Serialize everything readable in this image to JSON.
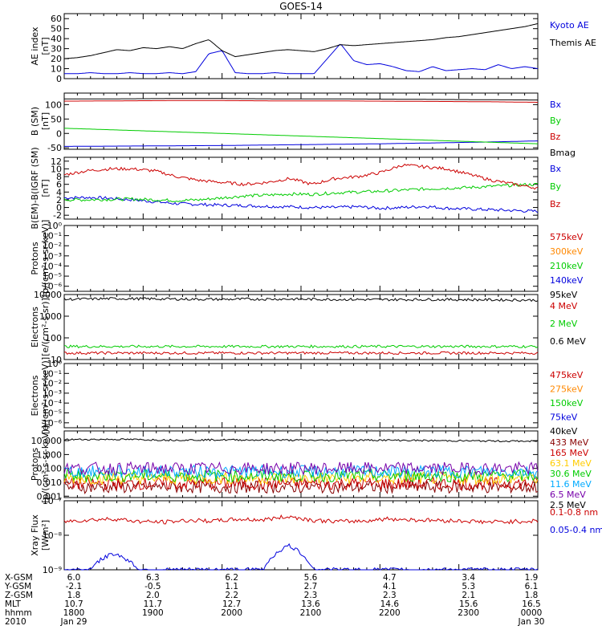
{
  "title": "GOES-14",
  "colors": {
    "black": "#000000",
    "blue": "#0000dd",
    "red": "#cc0000",
    "green": "#00cc00",
    "orange": "#ff8800",
    "darkred": "#880000",
    "gold": "#ffcc00",
    "cyan": "#00aaff",
    "purple": "#7700aa"
  },
  "chart_data": [
    {
      "type": "line",
      "panel": "ae_index",
      "ylabel": [
        "AE index",
        "[nT]"
      ],
      "ylim": [
        0,
        65
      ],
      "yticks": [
        "60",
        "50",
        "40",
        "30",
        "20",
        "10",
        "0"
      ],
      "ytick_values": [
        60,
        50,
        40,
        30,
        20,
        10,
        0
      ],
      "series": [
        {
          "name": "Kyoto AE",
          "color": "#0000dd",
          "values": [
            5,
            5,
            6,
            5,
            5,
            6,
            5,
            5,
            6,
            5,
            7,
            25,
            28,
            6,
            5,
            5,
            6,
            5,
            5,
            5,
            20,
            35,
            18,
            14,
            15,
            12,
            8,
            7,
            12,
            8,
            9,
            10,
            9,
            14,
            10,
            12,
            10
          ]
        },
        {
          "name": "Themis AE",
          "color": "#000000",
          "values": [
            20,
            21,
            23,
            26,
            29,
            28,
            31,
            30,
            32,
            30,
            35,
            39,
            28,
            22,
            24,
            26,
            28,
            29,
            28,
            27,
            30,
            34,
            33,
            34,
            35,
            36,
            37,
            38,
            39,
            41,
            42,
            44,
            46,
            48,
            50,
            52,
            55
          ]
        }
      ]
    },
    {
      "type": "line",
      "panel": "b_sm",
      "ylabel": [
        "B (SM)",
        "[nT]"
      ],
      "ylim": [
        -55,
        140
      ],
      "yticks": [
        "100",
        "50",
        "0",
        "-50"
      ],
      "ytick_values": [
        100,
        50,
        0,
        -50
      ],
      "series": [
        {
          "name": "Bx",
          "color": "#0000dd",
          "values": [
            -45,
            -44,
            -43,
            -42,
            -40,
            -38,
            -36,
            -33,
            -30,
            -26
          ]
        },
        {
          "name": "By",
          "color": "#00cc00",
          "values": [
            18,
            12,
            6,
            0,
            -6,
            -12,
            -18,
            -24,
            -30,
            -36
          ]
        },
        {
          "name": "Bz",
          "color": "#cc0000",
          "values": [
            112,
            113,
            114,
            114,
            113,
            113,
            112,
            111,
            110,
            108
          ]
        },
        {
          "name": "Bmag",
          "color": "#000000",
          "values": [
            120,
            120,
            121,
            121,
            120,
            120,
            119,
            118,
            117,
            116
          ]
        }
      ]
    },
    {
      "type": "line",
      "panel": "b_minus_igrf",
      "ylabel": [
        "B(EM)-B(IGRF (SM)",
        "[nT]"
      ],
      "ylim": [
        -3,
        13
      ],
      "yticks": [
        "12",
        "10",
        "8",
        "6",
        "4",
        "2",
        "0",
        "-2"
      ],
      "ytick_values": [
        12,
        10,
        8,
        6,
        4,
        2,
        0,
        -2
      ],
      "series": [
        {
          "name": "Bx",
          "color": "#0000dd",
          "values": [
            2.5,
            2.6,
            2.4,
            2.0,
            1.5,
            1.0,
            0.8,
            0.6,
            0.5,
            0.3,
            0.2,
            0.0,
            0.0,
            0.2,
            -0.2,
            0.0,
            0.3,
            -0.2,
            -0.4,
            -0.6,
            -0.8,
            -1.0
          ]
        },
        {
          "name": "By",
          "color": "#00cc00",
          "values": [
            2.0,
            2.0,
            2.1,
            2.2,
            2.0,
            1.8,
            2.0,
            2.5,
            3.0,
            3.2,
            3.5,
            3.4,
            3.8,
            4.0,
            4.2,
            4.5,
            4.8,
            5.0,
            5.2,
            5.5,
            5.8,
            6.0
          ]
        },
        {
          "name": "Bz",
          "color": "#cc0000",
          "values": [
            8.5,
            9.5,
            10.0,
            10.0,
            9.5,
            8.0,
            7.0,
            6.5,
            6.0,
            6.5,
            7.5,
            6.0,
            7.5,
            8.0,
            9.0,
            11.0,
            10.5,
            10.0,
            8.5,
            7.0,
            6.0,
            5.0
          ]
        }
      ]
    },
    {
      "type": "line",
      "panel": "protons_low",
      "scale": "log",
      "ylabel": [
        "Protons",
        "[p/(cm²-s-sr-keV)]"
      ],
      "ylim_exp": [
        -6.5,
        0
      ],
      "ytick_exps": [
        0,
        -1,
        -2,
        -3,
        -4,
        -5,
        -6
      ],
      "legend": [
        {
          "name": "575keV",
          "color": "#cc0000"
        },
        {
          "name": "300keV",
          "color": "#ff8800"
        },
        {
          "name": "210keV",
          "color": "#00cc00"
        },
        {
          "name": "140keV",
          "color": "#0000dd"
        },
        {
          "name": "95keV",
          "color": "#000000"
        }
      ]
    },
    {
      "type": "line",
      "panel": "electrons_high",
      "scale": "log",
      "ylabel": [
        "Electrons",
        "[e/(cm²-s-sr)]"
      ],
      "ylim_exp": [
        1,
        4
      ],
      "yticks": [
        "10000",
        "1000",
        "100",
        "10"
      ],
      "ytick_exps": [
        4,
        3,
        2,
        1
      ],
      "series": [
        {
          "name": "4 MeV",
          "color": "#cc0000",
          "values": [
            20,
            20,
            20,
            20,
            20,
            20,
            20,
            20,
            20,
            20
          ]
        },
        {
          "name": "2 MeV",
          "color": "#00cc00",
          "values": [
            40,
            40,
            40,
            40,
            40,
            40,
            40,
            40,
            40,
            40
          ]
        },
        {
          "name": "0.6 MeV",
          "color": "#000000",
          "values": [
            6000,
            6500,
            6200,
            6000,
            6200,
            6000,
            5800,
            5900,
            5700,
            5500
          ]
        }
      ]
    },
    {
      "type": "line",
      "panel": "electrons_low",
      "scale": "log",
      "ylabel": [
        "Electrons",
        "[e/(cm²-s-sr-keV)]"
      ],
      "ylim_exp": [
        -6.5,
        0
      ],
      "ytick_exps": [
        0,
        -1,
        -2,
        -3,
        -4,
        -5,
        -6
      ],
      "legend": [
        {
          "name": "475keV",
          "color": "#cc0000"
        },
        {
          "name": "275keV",
          "color": "#ff8800"
        },
        {
          "name": "150keV",
          "color": "#00cc00"
        },
        {
          "name": "75keV",
          "color": "#0000dd"
        },
        {
          "name": "40keV",
          "color": "#000000"
        }
      ]
    },
    {
      "type": "line",
      "panel": "protons_high",
      "scale": "log",
      "ylabel": [
        "Protons",
        "[p/(cm²-s-sr-keV)]"
      ],
      "ylim_exp": [
        -3.1,
        1.7
      ],
      "yticks": [
        "10.000",
        "1.000",
        "0.100",
        "0.010",
        "0.001"
      ],
      "ytick_exps": [
        1,
        0,
        -1,
        -2,
        -3
      ],
      "series": [
        {
          "name": "433 MeV",
          "color": "#880000",
          "values": [
            0.0045,
            0.0045,
            0.0045,
            0.0045,
            0.0045
          ]
        },
        {
          "name": "165 MeV",
          "color": "#cc0000",
          "values": [
            0.008,
            0.008,
            0.008,
            0.008,
            0.008
          ]
        },
        {
          "name": "63.1 MeV",
          "color": "#ffcc00",
          "values": [
            0.02,
            0.02,
            0.02,
            0.02,
            0.02
          ]
        },
        {
          "name": "30.6 MeV",
          "color": "#00cc00",
          "values": [
            0.03,
            0.03,
            0.03,
            0.03,
            0.03
          ]
        },
        {
          "name": "11.6 MeV",
          "color": "#00aaff",
          "values": [
            0.06,
            0.06,
            0.06,
            0.06,
            0.06
          ]
        },
        {
          "name": "6.5 MeV",
          "color": "#7700aa",
          "values": [
            0.1,
            0.1,
            0.1,
            0.1,
            0.1
          ]
        },
        {
          "name": "2.5 MeV",
          "color": "#000000",
          "values": [
            12,
            12.5,
            11,
            11.5,
            11,
            10.5,
            11,
            10,
            9.5,
            9
          ]
        }
      ]
    },
    {
      "type": "line",
      "panel": "xray",
      "scale": "log",
      "ylabel": [
        "Xray Flux",
        "[W/m²]"
      ],
      "ylim_exp": [
        -9,
        -7
      ],
      "ytick_exps": [
        -7,
        -8,
        -9
      ],
      "series": [
        {
          "name": "0.1-0.8 nm",
          "color": "#cc0000",
          "values": [
            2.5e-08,
            2.8e-08,
            3e-08,
            2.5e-08,
            2.4e-08,
            2.7e-08,
            2.6e-08,
            2.9e-08,
            2.8e-08,
            3.5e-08,
            2.7e-08,
            2.5e-08,
            2.6e-08,
            3e-08,
            2.8e-08,
            2.7e-08,
            2.6e-08,
            2.4e-08,
            2.5e-08,
            2.6e-08
          ]
        },
        {
          "name": "0.05-0.4 nm",
          "color": "#0000dd",
          "values": [
            1e-09,
            1e-09,
            3e-09,
            1e-09,
            1e-09,
            1e-09,
            1e-09,
            1e-09,
            1e-09,
            5e-09,
            1e-09,
            1e-09,
            1e-09,
            1e-09,
            1e-09,
            1e-09,
            1e-09,
            1e-09,
            1e-09,
            1e-09
          ]
        }
      ]
    }
  ],
  "x_axis": {
    "row_labels": [
      "X-GSM",
      "Y-GSM",
      "Z-GSM",
      "MLT",
      "hhmm",
      "2010"
    ],
    "columns": [
      [
        "6.0",
        "-2.1",
        "1.8",
        "10.7",
        "1800",
        "Jan 29"
      ],
      [
        "6.3",
        "-0.5",
        "2.0",
        "11.7",
        "1900",
        ""
      ],
      [
        "6.2",
        "1.1",
        "2.2",
        "12.7",
        "2000",
        ""
      ],
      [
        "5.6",
        "2.7",
        "2.3",
        "13.6",
        "2100",
        ""
      ],
      [
        "4.7",
        "4.1",
        "2.3",
        "14.6",
        "2200",
        ""
      ],
      [
        "3.4",
        "5.3",
        "2.1",
        "15.6",
        "2300",
        ""
      ],
      [
        "1.9",
        "6.1",
        "1.8",
        "16.5",
        "0000",
        "Jan 30"
      ]
    ]
  }
}
